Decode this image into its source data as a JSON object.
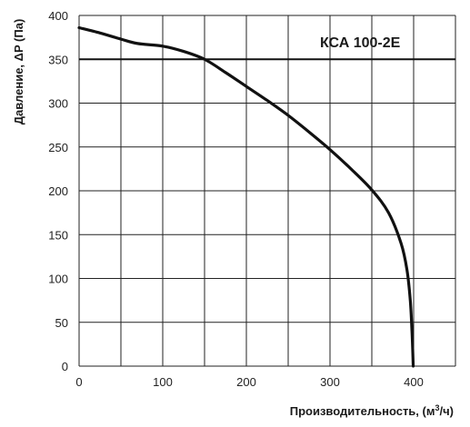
{
  "chart_data": {
    "type": "line",
    "title": "",
    "model_label": "КСА 100-2Е",
    "xlabel_main": "Производительность, (м",
    "xlabel_sup": "3",
    "xlabel_end": "/ч)",
    "ylabel": "Давление, ΔP (Па)",
    "xlim": [
      0,
      450
    ],
    "ylim": [
      0,
      400
    ],
    "xticks": [
      0,
      100,
      200,
      300,
      400
    ],
    "yticks": [
      0,
      50,
      100,
      150,
      200,
      250,
      300,
      350,
      400
    ],
    "grid": true,
    "x_gridlines": [
      0,
      50,
      100,
      150,
      200,
      250,
      300,
      350,
      400,
      450
    ],
    "y_gridlines": [
      0,
      50,
      100,
      150,
      200,
      250,
      300,
      350,
      400
    ],
    "reference_line_y": 350,
    "series": [
      {
        "x": [
          0,
          25,
          50,
          70,
          100,
          125,
          150,
          175,
          200,
          225,
          250,
          275,
          300,
          325,
          350,
          370,
          385,
          392,
          396,
          398,
          399,
          399.5
        ],
        "y": [
          386,
          380,
          373,
          368,
          365,
          359,
          350,
          335,
          319,
          303,
          286,
          267,
          247,
          225,
          201,
          175,
          140,
          110,
          75,
          40,
          15,
          0
        ]
      }
    ],
    "colors": {
      "curve": "#111111",
      "grid": "#222222",
      "text": "#1a1a1a"
    }
  }
}
